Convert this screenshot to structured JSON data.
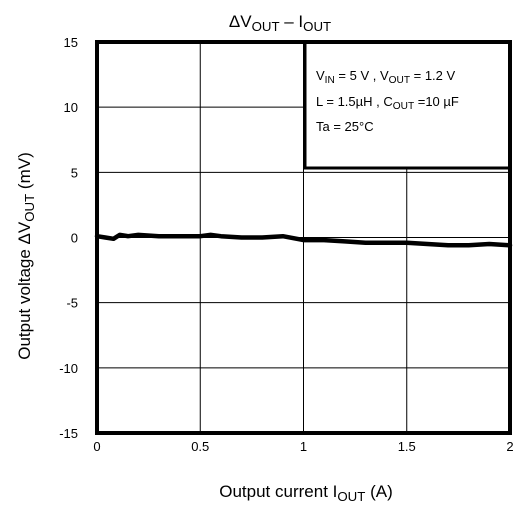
{
  "chart_data": {
    "type": "line",
    "title": {
      "main": "ΔV",
      "sub1": "OUT",
      "mid": " – I",
      "sub2": "OUT"
    },
    "xlabel": {
      "main": "Output current   I",
      "sub": "OUT",
      "tail": "   (A)"
    },
    "ylabel": {
      "main": "Output voltage   ΔV",
      "sub": "OUT",
      "tail": "   (mV)"
    },
    "xlim": [
      0,
      2
    ],
    "ylim": [
      -15,
      15
    ],
    "x_ticks": [
      "0",
      "0.5",
      "1",
      "1.5",
      "2"
    ],
    "y_ticks": [
      "15",
      "10",
      "5",
      "0",
      "-5",
      "-10",
      "-15"
    ],
    "grid": true,
    "series": [
      {
        "x": [
          0,
          0.04,
          0.08,
          0.11,
          0.15,
          0.2,
          0.3,
          0.4,
          0.5,
          0.55,
          0.6,
          0.7,
          0.8,
          0.9,
          1.0,
          1.1,
          1.2,
          1.3,
          1.4,
          1.5,
          1.6,
          1.7,
          1.8,
          1.9,
          2.0
        ],
        "values": [
          0.1,
          0.0,
          -0.1,
          0.2,
          0.1,
          0.2,
          0.1,
          0.1,
          0.1,
          0.2,
          0.1,
          0.0,
          0.0,
          0.1,
          -0.2,
          -0.2,
          -0.3,
          -0.4,
          -0.4,
          -0.4,
          -0.5,
          -0.6,
          -0.6,
          -0.5,
          -0.6
        ]
      }
    ],
    "annotation": {
      "line1": {
        "a": "V",
        "a_sub": "IN",
        "b": " = 5 V , V",
        "b_sub": "OUT",
        "c": " = 1.2 V"
      },
      "line2": {
        "a": "L = 1.5µH , C",
        "a_sub": "OUT",
        "b": " =10 µF"
      },
      "line3": "Ta = 25°C"
    }
  }
}
